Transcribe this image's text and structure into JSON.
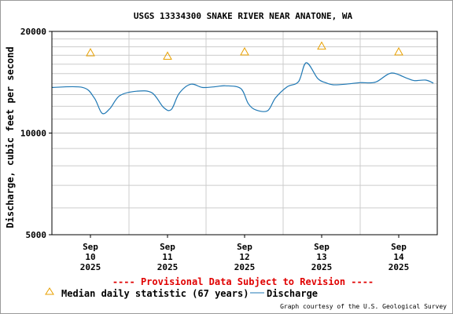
{
  "chart_data": {
    "type": "line",
    "title": "USGS 13334300 SNAKE RIVER NEAR ANATONE, WA",
    "ylabel": "Discharge, cubic feet per second",
    "xlabel": "",
    "yscale": "log",
    "ylim": [
      5000,
      20000
    ],
    "xlim": [
      -0.5,
      4.5
    ],
    "y_ticks": [
      {
        "value": 5000,
        "label": "5000"
      },
      {
        "value": 10000,
        "label": "10000"
      },
      {
        "value": 20000,
        "label": "20000"
      }
    ],
    "x_ticks": [
      {
        "value": 0,
        "month": "Sep",
        "day": "10",
        "year": "2025"
      },
      {
        "value": 1,
        "month": "Sep",
        "day": "11",
        "year": "2025"
      },
      {
        "value": 2,
        "month": "Sep",
        "day": "12",
        "year": "2025"
      },
      {
        "value": 3,
        "month": "Sep",
        "day": "13",
        "year": "2025"
      },
      {
        "value": 4,
        "month": "Sep",
        "day": "14",
        "year": "2025"
      }
    ],
    "grid": true,
    "series": [
      {
        "name": "Discharge",
        "color": "#1f78b4",
        "style": "line",
        "x": [
          -0.5,
          -0.1,
          0.05,
          0.15,
          0.25,
          0.38,
          0.6,
          0.8,
          0.95,
          1.05,
          1.15,
          1.3,
          1.45,
          1.6,
          1.75,
          1.95,
          2.05,
          2.15,
          2.3,
          2.4,
          2.55,
          2.7,
          2.8,
          2.95,
          3.05,
          3.15,
          3.3,
          3.5,
          3.7,
          3.9,
          4.1,
          4.2,
          4.35,
          4.45
        ],
        "values": [
          13650,
          13650,
          12700,
          11450,
          11800,
          12900,
          13300,
          13150,
          11900,
          11750,
          13100,
          13950,
          13650,
          13700,
          13800,
          13550,
          12200,
          11700,
          11650,
          12700,
          13700,
          14200,
          16150,
          14500,
          14100,
          13900,
          13950,
          14100,
          14150,
          15050,
          14550,
          14300,
          14350,
          14050
        ]
      },
      {
        "name": "Median daily statistic (67 years)",
        "color": "#e8a000",
        "style": "triangle",
        "x": [
          0,
          1,
          2,
          3,
          4
        ],
        "values": [
          17300,
          16900,
          17400,
          18100,
          17400
        ]
      }
    ],
    "provisional_note": "---- Provisional Data Subject to Revision ----",
    "credit": "Graph courtesy of the U.S. Geological Survey"
  }
}
